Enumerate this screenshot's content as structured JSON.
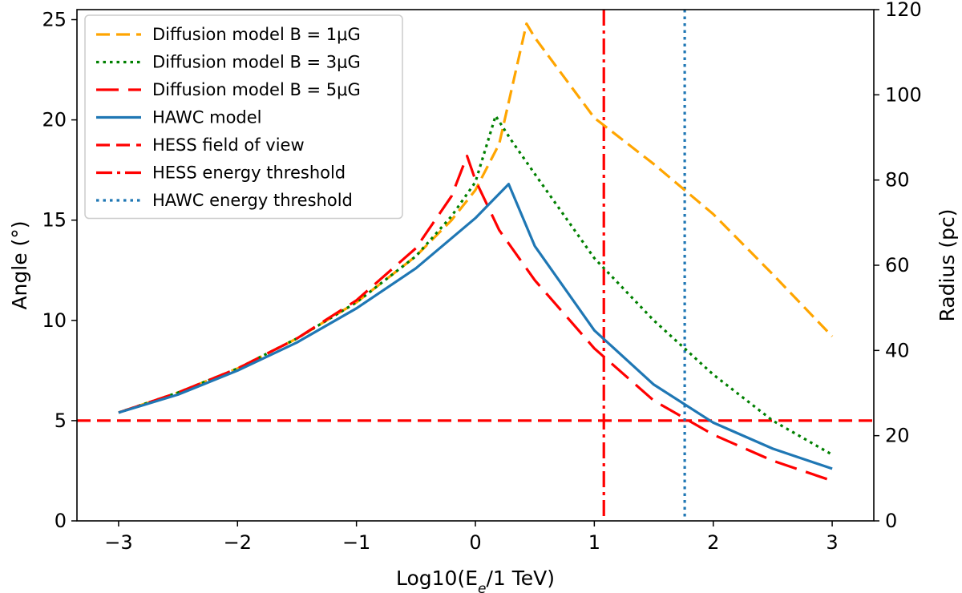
{
  "chart_data": {
    "type": "line",
    "xlabel": "Log10(E",
    "xlabel_sub": "e",
    "xlabel_tail": "/1 TeV)",
    "ylabel": "Angle (°)",
    "y2label": "Radius (pc)",
    "xlim": [
      -3.35,
      3.35
    ],
    "ylim": [
      0,
      25.5
    ],
    "y2lim": [
      0,
      120
    ],
    "xticks": [
      -3,
      -2,
      -1,
      0,
      1,
      2,
      3
    ],
    "xtick_labels": [
      "−3",
      "−2",
      "−1",
      "0",
      "1",
      "2",
      "3"
    ],
    "yticks": [
      0,
      5,
      10,
      15,
      20,
      25
    ],
    "ytick_labels": [
      "0",
      "5",
      "10",
      "15",
      "20",
      "25"
    ],
    "y2ticks": [
      0,
      20,
      40,
      60,
      80,
      100,
      120
    ],
    "y2tick_labels": [
      "0",
      "20",
      "40",
      "60",
      "80",
      "100",
      "120"
    ],
    "legend_position": "top-left",
    "series": [
      {
        "name": "Diffusion model B = 1μG",
        "color": "#ffa500",
        "dash": "dashed",
        "x": [
          -3,
          -2.5,
          -2,
          -1.5,
          -1,
          -0.5,
          -0.2,
          0,
          0.2,
          0.43,
          0.5,
          1,
          1.5,
          2,
          2.5,
          3
        ],
        "y": [
          5.4,
          6.4,
          7.6,
          9.1,
          10.9,
          13.2,
          15,
          16.5,
          18.8,
          24.8,
          24.1,
          20.1,
          17.8,
          15.3,
          12.3,
          9.2
        ]
      },
      {
        "name": "Diffusion model B = 3μG",
        "color": "#008000",
        "dash": "dotted",
        "x": [
          -3,
          -2.5,
          -2,
          -1.5,
          -1,
          -0.5,
          -0.2,
          0,
          0.17,
          0.3,
          0.5,
          1,
          1.5,
          2,
          2.5,
          3
        ],
        "y": [
          5.4,
          6.4,
          7.6,
          9.1,
          10.9,
          13.2,
          15.2,
          16.9,
          20.2,
          19,
          17.3,
          13.1,
          10,
          7.3,
          5,
          3.3
        ]
      },
      {
        "name": "Diffusion model B = 5μG",
        "color": "#ff0000",
        "dash": "longdash",
        "x": [
          -3,
          -2.5,
          -2,
          -1.5,
          -1,
          -0.5,
          -0.2,
          -0.07,
          0,
          0.2,
          0.5,
          1,
          1.5,
          2,
          2.5,
          3
        ],
        "y": [
          5.4,
          6.4,
          7.6,
          9.1,
          11,
          13.6,
          16.2,
          18.2,
          17,
          14.5,
          12,
          8.6,
          6,
          4.3,
          3,
          2
        ]
      },
      {
        "name": "HAWC model",
        "color": "#1f77b4",
        "dash": "solid",
        "x": [
          -3,
          -2.5,
          -2,
          -1.5,
          -1,
          -0.5,
          0,
          0.28,
          0.5,
          1,
          1.5,
          2,
          2.5,
          3
        ],
        "y": [
          5.4,
          6.3,
          7.5,
          8.9,
          10.6,
          12.6,
          15.1,
          16.8,
          13.7,
          9.5,
          6.8,
          4.9,
          3.6,
          2.6
        ]
      }
    ],
    "reference_lines": [
      {
        "name": "HESS field of view",
        "orientation": "horizontal",
        "y": 5,
        "color": "#ff0000",
        "dash": "dashed"
      },
      {
        "name": "HESS energy threshold",
        "orientation": "vertical",
        "x": 1.08,
        "color": "#ff0000",
        "dash": "dashdot"
      },
      {
        "name": "HAWC energy threshold",
        "orientation": "vertical",
        "x": 1.76,
        "color": "#1f77b4",
        "dash": "dotted"
      }
    ],
    "legend": [
      {
        "label": "Diffusion model B = 1μG",
        "color": "#ffa500",
        "dash": "dashed"
      },
      {
        "label": "Diffusion model B = 3μG",
        "color": "#008000",
        "dash": "dotted"
      },
      {
        "label": "Diffusion model B = 5μG",
        "color": "#ff0000",
        "dash": "longdash"
      },
      {
        "label": "HAWC model",
        "color": "#1f77b4",
        "dash": "solid"
      },
      {
        "label": "HESS field of view",
        "color": "#ff0000",
        "dash": "dashed"
      },
      {
        "label": "HESS energy threshold",
        "color": "#ff0000",
        "dash": "dashdot"
      },
      {
        "label": "HAWC energy threshold",
        "color": "#1f77b4",
        "dash": "dotted"
      }
    ]
  }
}
